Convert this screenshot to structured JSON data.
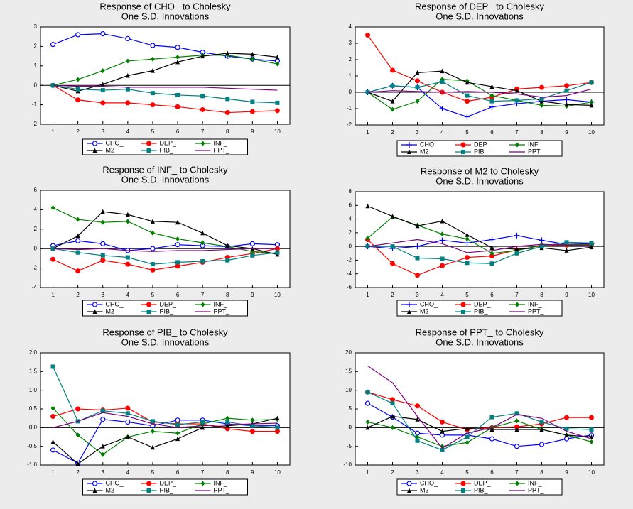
{
  "chart_data": [
    {
      "type": "line",
      "title": "Response of CHO_ to Cholesky",
      "subtitle": "One S.D. Innovations",
      "categories": [
        "1",
        "2",
        "3",
        "4",
        "5",
        "6",
        "7",
        "8",
        "9",
        "10"
      ],
      "ylim": [
        -2,
        3
      ],
      "yticks": [
        -2,
        -1,
        0,
        1,
        2,
        3
      ],
      "series": [
        {
          "name": "CHO_",
          "color": "#0000ff",
          "marker": "circle",
          "values": [
            2.1,
            2.6,
            2.65,
            2.4,
            2.05,
            1.95,
            1.7,
            1.5,
            1.35,
            1.25
          ]
        },
        {
          "name": "DEP_",
          "color": "#ff0000",
          "marker": "dot",
          "values": [
            0,
            -0.75,
            -0.9,
            -0.9,
            -1.0,
            -1.1,
            -1.25,
            -1.4,
            -1.35,
            -1.3
          ]
        },
        {
          "name": "INF_",
          "color": "#008000",
          "marker": "diamond",
          "values": [
            0,
            0.3,
            0.75,
            1.25,
            1.35,
            1.45,
            1.55,
            1.55,
            1.35,
            1.1
          ]
        },
        {
          "name": "M2",
          "color": "#000000",
          "marker": "triangle",
          "values": [
            0,
            -0.3,
            0.05,
            0.5,
            0.75,
            1.2,
            1.5,
            1.65,
            1.6,
            1.45
          ]
        },
        {
          "name": "PIB_",
          "color": "#008080",
          "marker": "square",
          "values": [
            0,
            -0.2,
            -0.25,
            -0.2,
            -0.4,
            -0.5,
            -0.55,
            -0.7,
            -0.85,
            -0.9
          ]
        },
        {
          "name": "PPT_",
          "color": "#800080",
          "marker": "none",
          "values": [
            0,
            -0.05,
            -0.05,
            -0.1,
            -0.1,
            -0.1,
            -0.1,
            -0.15,
            -0.2,
            -0.25
          ]
        }
      ]
    },
    {
      "type": "line",
      "title": "Response of DEP_ to Cholesky",
      "subtitle": "One S.D. Innovations",
      "categories": [
        "1",
        "2",
        "3",
        "4",
        "5",
        "6",
        "7",
        "8",
        "9",
        "10"
      ],
      "ylim": [
        -2,
        4
      ],
      "yticks": [
        -2,
        -1,
        0,
        1,
        2,
        3,
        4
      ],
      "series": [
        {
          "name": "CHO_",
          "color": "#0000ff",
          "marker": "plus",
          "values": [
            0,
            0.4,
            0.3,
            -1.0,
            -1.5,
            -0.9,
            -0.7,
            -0.55,
            -0.45,
            -0.6
          ]
        },
        {
          "name": "DEP_",
          "color": "#ff0000",
          "marker": "dot",
          "values": [
            3.5,
            1.35,
            0.7,
            0.0,
            -0.55,
            -0.3,
            0.2,
            0.3,
            0.4,
            0.6
          ]
        },
        {
          "name": "INF_",
          "color": "#008000",
          "marker": "diamond",
          "values": [
            0,
            -1.05,
            -0.55,
            0.8,
            0.7,
            -0.2,
            -0.5,
            -0.8,
            -0.85,
            -0.6
          ]
        },
        {
          "name": "M2",
          "color": "#000000",
          "marker": "triangle",
          "values": [
            0,
            -0.55,
            1.2,
            1.3,
            0.6,
            0.35,
            0.1,
            -0.55,
            -0.75,
            -0.8
          ]
        },
        {
          "name": "PIB_",
          "color": "#008080",
          "marker": "square",
          "values": [
            0,
            0.4,
            0.3,
            0.65,
            -0.2,
            -0.55,
            -0.5,
            -0.4,
            0.1,
            0.6
          ]
        },
        {
          "name": "PPT_",
          "color": "#800080",
          "marker": "none",
          "values": [
            0,
            0.1,
            0.05,
            0.0,
            0.05,
            0.0,
            -0.1,
            -0.3,
            -0.2,
            0.2
          ]
        }
      ]
    },
    {
      "type": "line",
      "title": "Response of INF_ to Cholesky",
      "subtitle": "One S.D. Innovations",
      "categories": [
        "1",
        "2",
        "3",
        "4",
        "5",
        "6",
        "7",
        "8",
        "9",
        "10"
      ],
      "ylim": [
        -4,
        6
      ],
      "yticks": [
        -4,
        -2,
        0,
        2,
        4,
        6
      ],
      "series": [
        {
          "name": "CHO_",
          "color": "#0000ff",
          "marker": "circle",
          "values": [
            0.3,
            0.8,
            0.5,
            -0.2,
            0.0,
            0.4,
            0.3,
            0.2,
            0.5,
            0.4
          ]
        },
        {
          "name": "DEP_",
          "color": "#ff0000",
          "marker": "dot",
          "values": [
            -1.1,
            -2.3,
            -1.2,
            -1.6,
            -2.2,
            -1.8,
            -1.4,
            -0.9,
            -0.5,
            0.0
          ]
        },
        {
          "name": "INF_",
          "color": "#008000",
          "marker": "diamond",
          "values": [
            4.2,
            3.0,
            2.7,
            2.8,
            1.6,
            1.0,
            0.6,
            0.2,
            -0.3,
            -0.5
          ]
        },
        {
          "name": "M2",
          "color": "#000000",
          "marker": "triangle",
          "values": [
            0,
            1.3,
            3.8,
            3.5,
            2.8,
            2.7,
            1.6,
            0.3,
            0.0,
            -0.6
          ]
        },
        {
          "name": "PIB_",
          "color": "#008080",
          "marker": "square",
          "values": [
            0,
            -0.4,
            -0.7,
            -0.9,
            -1.6,
            -1.4,
            -1.3,
            -1.2,
            -0.7,
            -0.4
          ]
        },
        {
          "name": "PPT_",
          "color": "#800080",
          "marker": "none",
          "values": [
            0,
            -0.1,
            0.0,
            -0.2,
            -0.3,
            -0.2,
            -0.2,
            -0.1,
            0.0,
            0.0
          ]
        }
      ]
    },
    {
      "type": "line",
      "title": "Response of M2 to Cholesky",
      "subtitle": "One S.D. Innovations",
      "categories": [
        "1",
        "2",
        "3",
        "4",
        "5",
        "6",
        "7",
        "8",
        "9",
        "10"
      ],
      "ylim": [
        -6,
        8
      ],
      "yticks": [
        -6,
        -4,
        -2,
        0,
        2,
        4,
        6,
        8
      ],
      "series": [
        {
          "name": "CHO_",
          "color": "#0000ff",
          "marker": "plus",
          "values": [
            0,
            -0.3,
            0,
            0.9,
            0.5,
            1.0,
            1.6,
            0.9,
            0.3,
            0.4
          ]
        },
        {
          "name": "DEP_",
          "color": "#ff0000",
          "marker": "dot",
          "values": [
            1.0,
            -2.5,
            -4.2,
            -2.8,
            -1.6,
            -1.4,
            -0.5,
            0.1,
            0.2,
            0.3
          ]
        },
        {
          "name": "INF_",
          "color": "#008000",
          "marker": "diamond",
          "values": [
            1.2,
            4.3,
            3.1,
            1.8,
            1.1,
            -1.0,
            -0.6,
            0.2,
            0.3,
            0.2
          ]
        },
        {
          "name": "M2",
          "color": "#000000",
          "marker": "triangle",
          "values": [
            5.9,
            4.4,
            3.0,
            3.7,
            1.7,
            -0.2,
            -0.4,
            -0.2,
            -0.6,
            -0.1
          ]
        },
        {
          "name": "PIB_",
          "color": "#008080",
          "marker": "square",
          "values": [
            0,
            0,
            -1.7,
            -1.8,
            -2.4,
            -2.5,
            -1.0,
            0,
            0.6,
            0.5
          ]
        },
        {
          "name": "PPT_",
          "color": "#800080",
          "marker": "none",
          "values": [
            0,
            0.5,
            1.0,
            0.4,
            -0.9,
            -0.6,
            0.0,
            0.3,
            0.2,
            0.1
          ]
        }
      ]
    },
    {
      "type": "line",
      "title": "Response of PIB_ to Cholesky",
      "subtitle": "One S.D. Innovations",
      "categories": [
        "1",
        "2",
        "3",
        "4",
        "5",
        "6",
        "7",
        "8",
        "9",
        "10"
      ],
      "ylim": [
        -1,
        2
      ],
      "yticks": [
        {
          "value": -1,
          "label": "-1.0"
        },
        {
          "value": -0.5,
          "label": "-0.5"
        },
        {
          "value": 0,
          "label": "0.0"
        },
        {
          "value": 0.5,
          "label": "0.5"
        },
        {
          "value": 1,
          "label": "1.0"
        },
        {
          "value": 1.5,
          "label": "1.5"
        },
        {
          "value": 2,
          "label": "2.0"
        }
      ],
      "series": [
        {
          "name": "CHO_",
          "color": "#0000ff",
          "marker": "circle",
          "values": [
            -0.6,
            -0.95,
            0.22,
            0.15,
            0.05,
            0.2,
            0.2,
            0.1,
            0.05,
            0.05
          ]
        },
        {
          "name": "DEP_",
          "color": "#ff0000",
          "marker": "dot",
          "values": [
            0.3,
            0.5,
            0.47,
            0.52,
            0.15,
            0.1,
            0.1,
            -0.03,
            -0.1,
            -0.1
          ]
        },
        {
          "name": "INF_",
          "color": "#008000",
          "marker": "diamond",
          "values": [
            0.52,
            -0.2,
            -0.72,
            -0.25,
            -0.1,
            -0.15,
            0.1,
            0.25,
            0.2,
            0.22
          ]
        },
        {
          "name": "M2",
          "color": "#000000",
          "marker": "triangle",
          "values": [
            -0.38,
            -0.97,
            -0.5,
            -0.25,
            -0.53,
            -0.3,
            0.0,
            0.05,
            0.1,
            0.25
          ]
        },
        {
          "name": "PIB_",
          "color": "#008080",
          "marker": "square",
          "values": [
            1.63,
            0.17,
            0.45,
            0.38,
            0.17,
            0.08,
            0.15,
            0.15,
            0.05,
            0.0
          ]
        },
        {
          "name": "PPT_",
          "color": "#800080",
          "marker": "none",
          "values": [
            0,
            0.17,
            0.4,
            0.3,
            0.1,
            0.0,
            0.05,
            0.08,
            0.1,
            0.12
          ]
        }
      ]
    },
    {
      "type": "line",
      "title": "Response of PPT_ to Cholesky",
      "subtitle": "One S.D. Innovations",
      "categories": [
        "1",
        "2",
        "3",
        "4",
        "5",
        "6",
        "7",
        "8",
        "9",
        "10"
      ],
      "ylim": [
        -10,
        20
      ],
      "yticks": [
        -10,
        -5,
        0,
        5,
        10,
        15,
        20
      ],
      "series": [
        {
          "name": "CHO_",
          "color": "#0000ff",
          "marker": "circle",
          "values": [
            6.5,
            2.8,
            -1.5,
            -2.0,
            -2.0,
            -3.0,
            -5.0,
            -4.5,
            -3.0,
            -2.0
          ]
        },
        {
          "name": "DEP_",
          "color": "#ff0000",
          "marker": "dot",
          "values": [
            9.5,
            7.5,
            5.8,
            1.5,
            -0.5,
            0.0,
            0.2,
            1.0,
            2.7,
            2.7
          ]
        },
        {
          "name": "INF_",
          "color": "#008000",
          "marker": "diamond",
          "values": [
            1.5,
            0.0,
            -2.5,
            -5.0,
            -4.0,
            0.0,
            1.8,
            -0.5,
            -2.0,
            -3.8
          ]
        },
        {
          "name": "M2",
          "color": "#000000",
          "marker": "triangle",
          "values": [
            0,
            3.0,
            2.2,
            -1.0,
            -0.2,
            -0.5,
            -0.5,
            -0.5,
            -2.0,
            -2.5
          ]
        },
        {
          "name": "PIB_",
          "color": "#008080",
          "marker": "square",
          "values": [
            9.5,
            6.5,
            -3.5,
            -6.0,
            -2.5,
            2.8,
            3.8,
            1.5,
            -0.3,
            -0.5
          ]
        },
        {
          "name": "PPT_",
          "color": "#800080",
          "marker": "none",
          "values": [
            16.5,
            12.0,
            3.0,
            -5.5,
            -1.5,
            0.0,
            3.5,
            2.5,
            -1.0,
            -3.0
          ]
        }
      ]
    }
  ]
}
